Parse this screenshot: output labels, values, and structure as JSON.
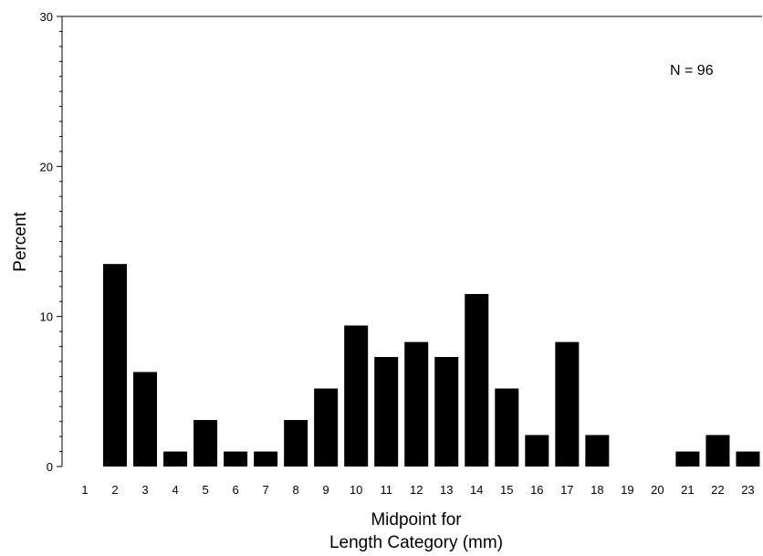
{
  "chart_data": {
    "type": "bar",
    "categories": [
      "1",
      "2",
      "3",
      "4",
      "5",
      "6",
      "7",
      "8",
      "9",
      "10",
      "11",
      "12",
      "13",
      "14",
      "15",
      "16",
      "17",
      "18",
      "19",
      "20",
      "21",
      "22",
      "23"
    ],
    "values": [
      0,
      13.5,
      6.3,
      1.0,
      3.1,
      1.0,
      1.0,
      3.1,
      5.2,
      9.4,
      7.3,
      8.3,
      7.3,
      11.5,
      5.2,
      2.1,
      8.3,
      2.1,
      0,
      0,
      1.0,
      2.1,
      1.0
    ],
    "xlabel_line1": "Midpoint for",
    "xlabel_line2": "Length Category (mm)",
    "ylabel": "Percent",
    "ylim": [
      0,
      30
    ],
    "yticks": [
      "0",
      "10",
      "20",
      "30"
    ],
    "annotation": "N = 96",
    "bar_color": "#000000",
    "grid": false
  }
}
